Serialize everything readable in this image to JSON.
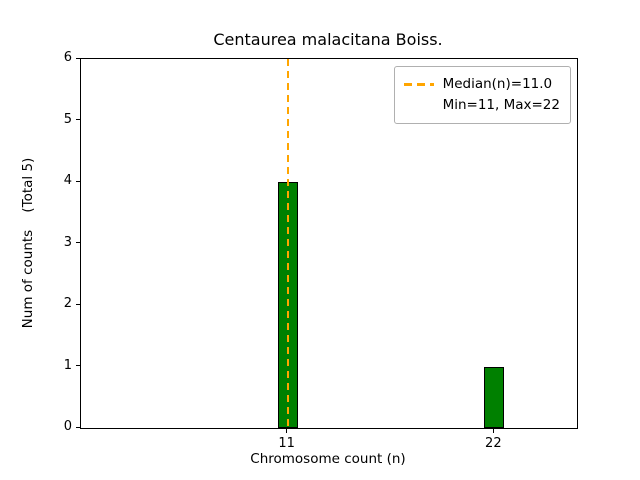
{
  "title": "Centaurea malacitana Boiss.",
  "chart_data": {
    "type": "bar",
    "title": "Centaurea malacitana Boiss.",
    "xlabel": "Chromosome count (n)",
    "ylabel": "Num of counts    (Total 5)",
    "categories": [
      11,
      22
    ],
    "values": [
      4,
      1
    ],
    "total_counts": 5,
    "min": 11,
    "max": 22,
    "median": 11.0,
    "bar_color": "#008000",
    "bar_edge_color": "#000000",
    "median_line": {
      "x": 11,
      "color": "#FFA500",
      "style": "dashed"
    },
    "legend": {
      "position": "upper right",
      "entries": [
        "Median(n)=11.0",
        "Min=11, Max=22"
      ]
    },
    "xlim": [
      0,
      26.4
    ],
    "ylim": [
      0,
      6
    ],
    "y_ticks": [
      0,
      1,
      2,
      3,
      4,
      5,
      6
    ],
    "x_ticks": [
      11,
      22
    ],
    "grid": false
  }
}
